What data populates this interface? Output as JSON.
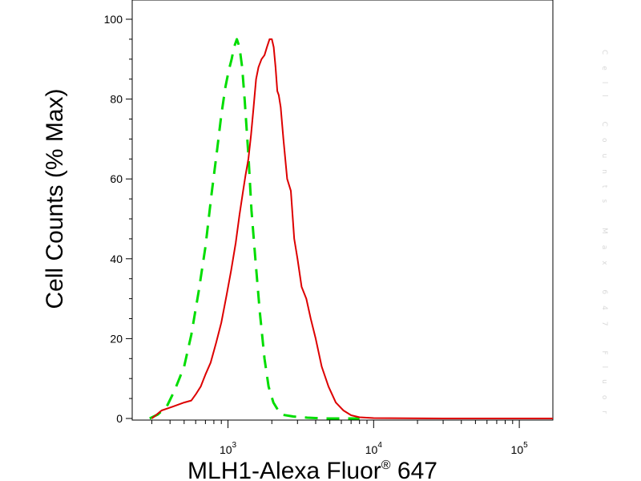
{
  "chart_data": {
    "type": "line",
    "title": "",
    "xlabel": "MLH1-Alexa Fluor® 647",
    "ylabel": "Cell Counts (% Max)",
    "x_scale": "log",
    "xlim": [
      220,
      170000
    ],
    "ylim": [
      0,
      105
    ],
    "x_ticks": [
      {
        "value": 1000,
        "base": "10",
        "exp": "3"
      },
      {
        "value": 10000,
        "base": "10",
        "exp": "4"
      },
      {
        "value": 100000,
        "base": "10",
        "exp": "5"
      }
    ],
    "y_ticks": [
      0,
      20,
      40,
      60,
      80,
      100
    ],
    "grid": false,
    "legend": "none",
    "series": [
      {
        "color": "#00dd00",
        "style": "dashed",
        "x": [
          290,
          330,
          380,
          430,
          500,
          560,
          630,
          700,
          770,
          840,
          900,
          960,
          1010,
          1060,
          1100,
          1150,
          1200,
          1250,
          1300,
          1380,
          1450,
          1550,
          1650,
          1780,
          1900,
          2050,
          2300,
          2800,
          3500,
          4500,
          8000
        ],
        "y": [
          0,
          1,
          3,
          7,
          13,
          21,
          32,
          43,
          56,
          67,
          76,
          83,
          87,
          90,
          93,
          95,
          93,
          88,
          80,
          66,
          52,
          39,
          27,
          15,
          8,
          4,
          1,
          0.5,
          0.2,
          0,
          0
        ]
      },
      {
        "color": "#dd0000",
        "style": "solid",
        "x": [
          300,
          350,
          420,
          500,
          560,
          600,
          650,
          700,
          760,
          830,
          900,
          980,
          1050,
          1130,
          1200,
          1270,
          1320,
          1380,
          1440,
          1500,
          1560,
          1620,
          1700,
          1780,
          1850,
          1930,
          2000,
          2060,
          2120,
          2180,
          2230,
          2300,
          2400,
          2550,
          2700,
          2850,
          3000,
          3200,
          3450,
          3700,
          4000,
          4400,
          4900,
          5500,
          6200,
          7000,
          8000,
          10000,
          30000,
          170000
        ],
        "y": [
          0,
          2,
          3,
          4,
          4.5,
          6,
          8,
          11,
          14,
          19,
          24,
          31,
          37,
          44,
          51,
          57,
          61,
          65,
          71,
          78,
          85,
          88,
          90,
          91,
          93,
          95,
          95,
          93,
          88,
          82,
          81,
          78,
          70,
          60,
          57,
          45,
          40,
          33,
          30,
          25,
          20,
          13,
          8,
          4,
          2,
          0.8,
          0.3,
          0.1,
          0,
          0
        ]
      }
    ]
  },
  "ghost_text": "Cell Counts Max 647 Fluor"
}
